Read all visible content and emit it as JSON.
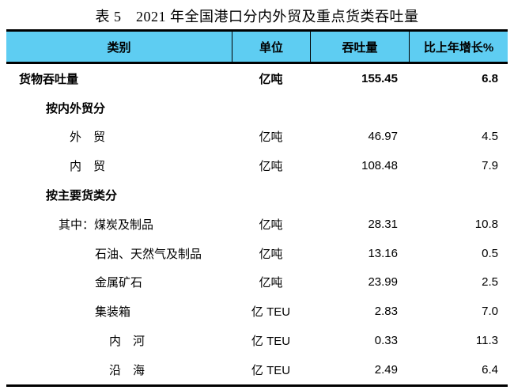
{
  "page": {
    "title": "表 5　2021 年全国港口分内外贸及重点货类吞吐量"
  },
  "colors": {
    "header_bg": "#5ECDF2",
    "border": "#000000"
  },
  "table": {
    "headers": [
      "类别",
      "单位",
      "吞吐量",
      "比上年增长%"
    ],
    "rows": [
      {
        "label": "货物吞吐量",
        "unit": "亿吨",
        "value": "155.45",
        "growth": "6.8"
      },
      {
        "label": "按内外贸分",
        "unit": "",
        "value": "",
        "growth": ""
      },
      {
        "label": "外　贸",
        "unit": "亿吨",
        "value": "46.97",
        "growth": "4.5"
      },
      {
        "label": "内　贸",
        "unit": "亿吨",
        "value": "108.48",
        "growth": "7.9"
      },
      {
        "label": "按主要货类分",
        "unit": "",
        "value": "",
        "growth": ""
      },
      {
        "label": "其中：煤炭及制品",
        "unit": "亿吨",
        "value": "28.31",
        "growth": "10.8"
      },
      {
        "label": "石油、天然气及制品",
        "unit": "亿吨",
        "value": "13.16",
        "growth": "0.5"
      },
      {
        "label": "金属矿石",
        "unit": "亿吨",
        "value": "23.99",
        "growth": "2.5"
      },
      {
        "label": "集装箱",
        "unit": "亿 TEU",
        "value": "2.83",
        "growth": "7.0"
      },
      {
        "label": "内　河",
        "unit": "亿 TEU",
        "value": "0.33",
        "growth": "11.3"
      },
      {
        "label": "沿　海",
        "unit": "亿 TEU",
        "value": "2.49",
        "growth": "6.4"
      }
    ]
  }
}
